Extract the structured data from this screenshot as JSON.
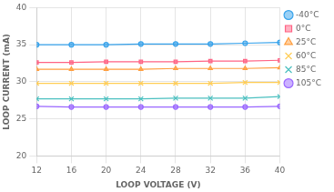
{
  "chart_data": {
    "type": "line",
    "xlabel": "LOOP VOLTAGE (V)",
    "ylabel": "LOOP CURRENT (mA)",
    "x": [
      12,
      16,
      20,
      24,
      28,
      32,
      36,
      40
    ],
    "series": [
      {
        "name": "-40°C",
        "marker": "circle",
        "values": [
          35.0,
          35.0,
          35.0,
          35.1,
          35.1,
          35.1,
          35.2,
          35.3
        ]
      },
      {
        "name": "0°C",
        "marker": "square",
        "values": [
          32.6,
          32.6,
          32.7,
          32.7,
          32.7,
          32.8,
          32.8,
          32.9
        ]
      },
      {
        "name": "25°C",
        "marker": "triangle",
        "values": [
          31.7,
          31.7,
          31.7,
          31.7,
          31.8,
          31.8,
          31.8,
          31.9
        ]
      },
      {
        "name": "60°C",
        "marker": "x",
        "values": [
          29.8,
          29.8,
          29.8,
          29.8,
          29.8,
          29.8,
          29.9,
          29.9
        ]
      },
      {
        "name": "85°C",
        "marker": "x",
        "values": [
          27.7,
          27.7,
          27.7,
          27.7,
          27.8,
          27.8,
          27.8,
          28.0
        ]
      },
      {
        "name": "105°C",
        "marker": "circle",
        "values": [
          26.7,
          26.6,
          26.6,
          26.6,
          26.6,
          26.6,
          26.6,
          26.7
        ]
      }
    ],
    "xlim": [
      12,
      40
    ],
    "ylim": [
      20,
      40
    ],
    "xticks": [
      12,
      16,
      20,
      24,
      28,
      32,
      36,
      40
    ],
    "yticks": [
      20,
      25,
      30,
      35,
      40
    ],
    "grid": true,
    "legend": "right"
  }
}
